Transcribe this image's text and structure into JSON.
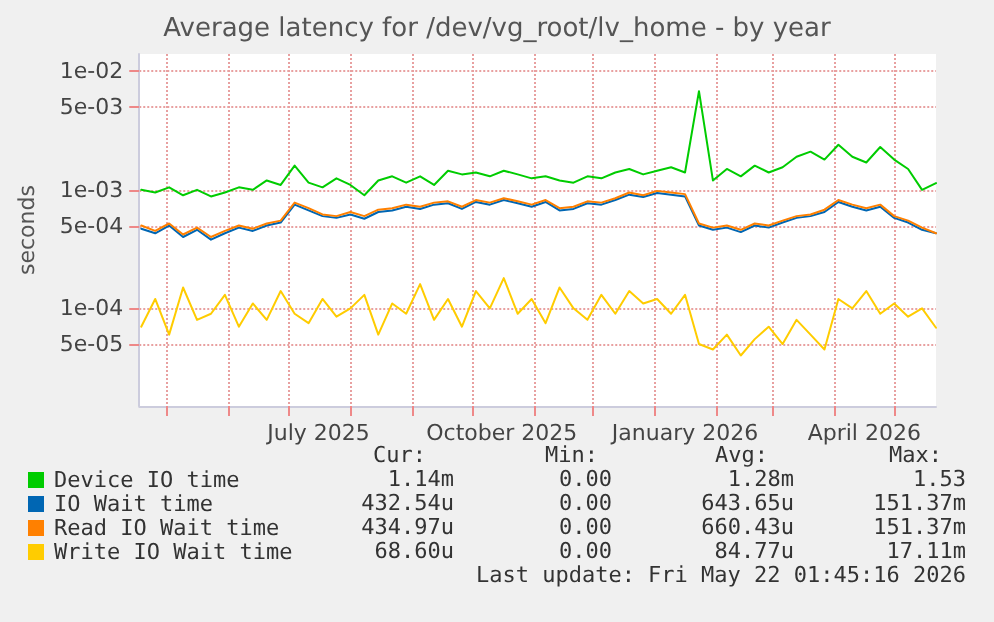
{
  "chart_data": {
    "type": "line",
    "title": "Average latency for /dev/vg_root/lv_home - by year",
    "ylabel": "seconds",
    "x": [
      "2025-04-18",
      "2025-04-25",
      "2025-05-02",
      "2025-05-09",
      "2025-05-16",
      "2025-05-23",
      "2025-05-30",
      "2025-06-06",
      "2025-06-13",
      "2025-06-20",
      "2025-06-27",
      "2025-07-04",
      "2025-07-11",
      "2025-07-18",
      "2025-07-25",
      "2025-08-01",
      "2025-08-08",
      "2025-08-15",
      "2025-08-22",
      "2025-08-29",
      "2025-09-05",
      "2025-09-12",
      "2025-09-19",
      "2025-09-26",
      "2025-10-03",
      "2025-10-10",
      "2025-10-17",
      "2025-10-24",
      "2025-10-31",
      "2025-11-07",
      "2025-11-14",
      "2025-11-21",
      "2025-11-28",
      "2025-12-05",
      "2025-12-12",
      "2025-12-19",
      "2025-12-26",
      "2026-01-02",
      "2026-01-09",
      "2026-01-16",
      "2026-01-23",
      "2026-01-30",
      "2026-02-06",
      "2026-02-13",
      "2026-02-20",
      "2026-02-27",
      "2026-03-06",
      "2026-03-13",
      "2026-03-20",
      "2026-03-27",
      "2026-04-03",
      "2026-04-10",
      "2026-04-17",
      "2026-04-24",
      "2026-05-01",
      "2026-05-08",
      "2026-05-15",
      "2026-05-22"
    ],
    "series": [
      {
        "name": "Device IO time",
        "color": "#00cc00",
        "values": [
          0.001,
          0.00095,
          0.00105,
          0.0009,
          0.001,
          0.00088,
          0.00095,
          0.00105,
          0.001,
          0.0012,
          0.0011,
          0.0016,
          0.00115,
          0.00105,
          0.00125,
          0.0011,
          0.0009,
          0.0012,
          0.0013,
          0.00115,
          0.0013,
          0.0011,
          0.00145,
          0.00135,
          0.0014,
          0.0013,
          0.00145,
          0.00135,
          0.00125,
          0.0013,
          0.0012,
          0.00115,
          0.0013,
          0.00125,
          0.0014,
          0.0015,
          0.00135,
          0.00145,
          0.00155,
          0.0014,
          0.0068,
          0.0012,
          0.0015,
          0.0013,
          0.0016,
          0.0014,
          0.00155,
          0.0019,
          0.0021,
          0.0018,
          0.0024,
          0.0019,
          0.0017,
          0.0023,
          0.0018,
          0.0015,
          0.001,
          0.00114
        ]
      },
      {
        "name": "IO Wait time",
        "color": "#0066b3",
        "values": [
          0.00047,
          0.00043,
          0.0005,
          0.0004,
          0.00046,
          0.00038,
          0.00043,
          0.00048,
          0.00045,
          0.0005,
          0.00053,
          0.00075,
          0.00067,
          0.0006,
          0.00058,
          0.00062,
          0.00057,
          0.00065,
          0.00067,
          0.00072,
          0.00069,
          0.00075,
          0.00077,
          0.00069,
          0.00079,
          0.00075,
          0.00082,
          0.00077,
          0.00072,
          0.00079,
          0.00067,
          0.00069,
          0.00077,
          0.00075,
          0.00082,
          0.00091,
          0.00087,
          0.00094,
          0.00091,
          0.00088,
          0.0005,
          0.00046,
          0.00048,
          0.00044,
          0.0005,
          0.00048,
          0.00053,
          0.00058,
          0.0006,
          0.00065,
          0.00079,
          0.00072,
          0.00067,
          0.00072,
          0.00058,
          0.00053,
          0.00046,
          0.00043
        ]
      },
      {
        "name": "Read IO Wait time",
        "color": "#ff8000",
        "values": [
          0.0005,
          0.00045,
          0.00052,
          0.00042,
          0.00048,
          0.0004,
          0.00045,
          0.0005,
          0.00047,
          0.00052,
          0.00055,
          0.00078,
          0.0007,
          0.00062,
          0.0006,
          0.00065,
          0.0006,
          0.00068,
          0.0007,
          0.00075,
          0.00072,
          0.00078,
          0.0008,
          0.00072,
          0.00082,
          0.00078,
          0.00085,
          0.0008,
          0.00075,
          0.00082,
          0.0007,
          0.00072,
          0.0008,
          0.00078,
          0.00085,
          0.00095,
          0.0009,
          0.00098,
          0.00095,
          0.00092,
          0.00052,
          0.00048,
          0.0005,
          0.00046,
          0.00052,
          0.0005,
          0.00055,
          0.0006,
          0.00062,
          0.00068,
          0.00082,
          0.00075,
          0.0007,
          0.00075,
          0.0006,
          0.00055,
          0.00048,
          0.00043
        ]
      },
      {
        "name": "Write IO Wait time",
        "color": "#ffcc00",
        "values": [
          7e-05,
          0.00012,
          6e-05,
          0.00015,
          8e-05,
          9e-05,
          0.00013,
          7e-05,
          0.00011,
          8e-05,
          0.00014,
          9e-05,
          7.5e-05,
          0.00012,
          8.5e-05,
          0.0001,
          0.00013,
          6e-05,
          0.00011,
          9e-05,
          0.00016,
          8e-05,
          0.00012,
          7e-05,
          0.00014,
          0.0001,
          0.00018,
          9e-05,
          0.00012,
          7.5e-05,
          0.00015,
          0.0001,
          8e-05,
          0.00013,
          9e-05,
          0.00014,
          0.00011,
          0.00012,
          9e-05,
          0.00013,
          5e-05,
          4.5e-05,
          6e-05,
          4e-05,
          5.5e-05,
          7e-05,
          5e-05,
          8e-05,
          6e-05,
          4.5e-05,
          0.00012,
          0.0001,
          0.00014,
          9e-05,
          0.00011,
          8.5e-05,
          0.0001,
          6.86e-05
        ]
      }
    ],
    "xlim": [
      "2025-04-17",
      "2026-05-22"
    ],
    "xticks": [
      {
        "value": "2025-05-01",
        "label": null
      },
      {
        "value": "2025-06-01",
        "label": null
      },
      {
        "value": "2025-07-01",
        "label": null
      },
      {
        "value": "2025-07-16",
        "label": "July 2025"
      },
      {
        "value": "2025-08-01",
        "label": null
      },
      {
        "value": "2025-09-01",
        "label": null
      },
      {
        "value": "2025-10-01",
        "label": null
      },
      {
        "value": "2025-10-16",
        "label": "October 2025"
      },
      {
        "value": "2025-11-01",
        "label": null
      },
      {
        "value": "2025-12-01",
        "label": null
      },
      {
        "value": "2026-01-01",
        "label": null
      },
      {
        "value": "2026-01-16",
        "label": "January 2026"
      },
      {
        "value": "2026-02-01",
        "label": null
      },
      {
        "value": "2026-03-01",
        "label": null
      },
      {
        "value": "2026-04-01",
        "label": null
      },
      {
        "value": "2026-04-16",
        "label": "April 2026"
      },
      {
        "value": "2026-05-01",
        "label": null
      }
    ],
    "ylim": [
      1.5e-05,
      0.014
    ],
    "yticks": [
      {
        "value": 5e-05,
        "label": "5e-05"
      },
      {
        "value": 0.0001,
        "label": "1e-04"
      },
      {
        "value": 0.0005,
        "label": "5e-04"
      },
      {
        "value": 0.001,
        "label": "1e-03"
      },
      {
        "value": 0.005,
        "label": "5e-03"
      },
      {
        "value": 0.01,
        "label": "1e-02"
      }
    ],
    "log": "y",
    "grid": true,
    "legend": "bottom",
    "marker": "none",
    "line_style": "solid",
    "annotations": [
      "Cur:",
      "Min:",
      "Avg:",
      "Max:",
      "1.14m",
      "0.00",
      "1.28m",
      "1.53",
      "432.54u",
      "0.00",
      "643.65u",
      "151.37m",
      "434.97u",
      "0.00",
      "660.43u",
      "151.37m",
      "68.60u",
      "0.00",
      "84.77u",
      "17.11m",
      "Last update: Fri May 22 01:45:16 2026"
    ]
  }
}
